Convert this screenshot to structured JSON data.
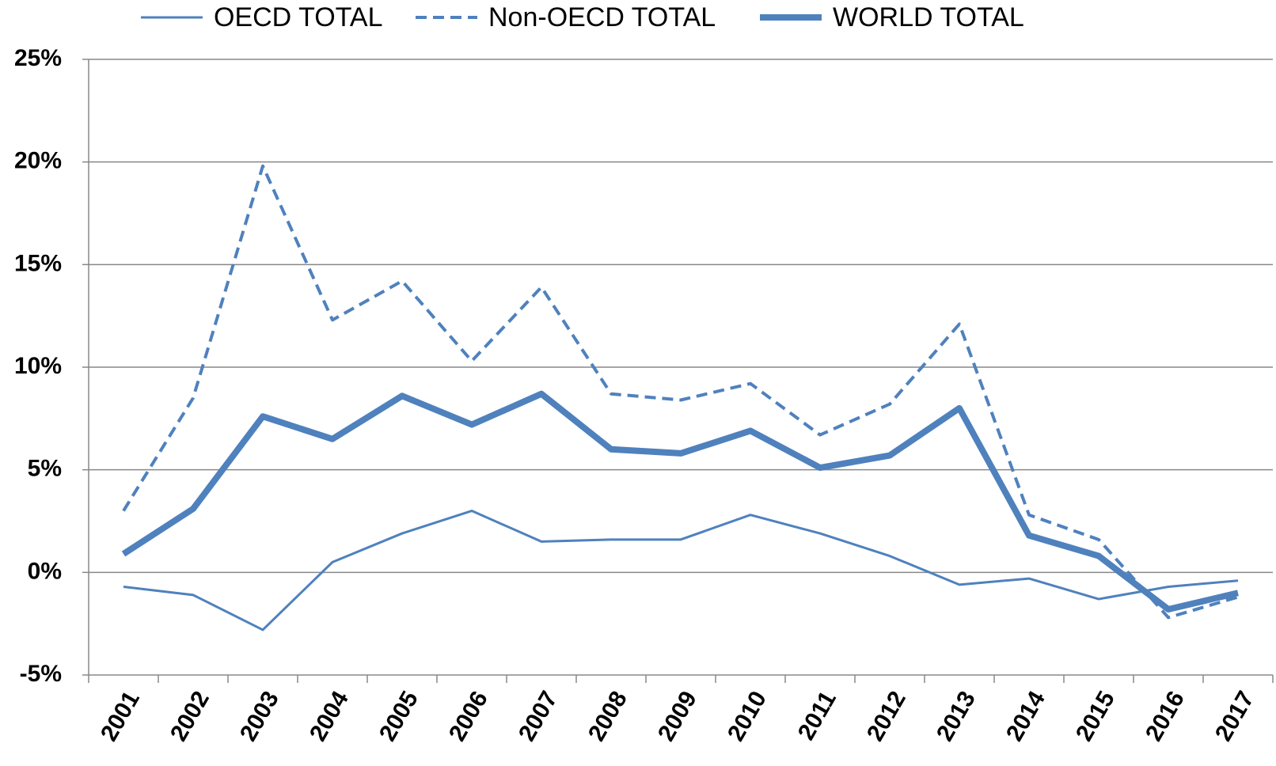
{
  "chart_data": {
    "type": "line",
    "categories": [
      "2001",
      "2002",
      "2003",
      "2004",
      "2005",
      "2006",
      "2007",
      "2008",
      "2009",
      "2010",
      "2011",
      "2012",
      "2013",
      "2014",
      "2015",
      "2016",
      "2017"
    ],
    "series": [
      {
        "name": "OECD TOTAL",
        "color": "#4f81bd",
        "line_width": 3,
        "dash": false,
        "values": [
          -0.7,
          -1.1,
          -2.8,
          0.5,
          1.9,
          3.0,
          1.5,
          1.6,
          1.6,
          2.8,
          1.9,
          0.8,
          -0.6,
          -0.3,
          -1.3,
          -0.7,
          -0.4
        ]
      },
      {
        "name": "Non-OECD TOTAL",
        "color": "#4f81bd",
        "line_width": 4,
        "dash": true,
        "values": [
          3.0,
          8.5,
          19.8,
          12.3,
          14.2,
          10.3,
          13.9,
          8.7,
          8.4,
          9.2,
          6.7,
          8.2,
          12.1,
          2.8,
          1.6,
          -2.2,
          -1.2
        ]
      },
      {
        "name": "WORLD TOTAL",
        "color": "#4f81bd",
        "line_width": 8,
        "dash": false,
        "values": [
          0.9,
          3.1,
          7.6,
          6.5,
          8.6,
          7.2,
          8.7,
          6.0,
          5.8,
          6.9,
          5.1,
          5.7,
          8.0,
          1.8,
          0.8,
          -1.8,
          -1.0
        ]
      }
    ],
    "ylim": [
      -5,
      25
    ],
    "yticks": [
      {
        "value": -5,
        "label": "-5%"
      },
      {
        "value": 0,
        "label": "0%"
      },
      {
        "value": 5,
        "label": "5%"
      },
      {
        "value": 10,
        "label": "10%"
      },
      {
        "value": 15,
        "label": "15%"
      },
      {
        "value": 20,
        "label": "20%"
      },
      {
        "value": 25,
        "label": "25%"
      }
    ],
    "grid": true,
    "legend": "top"
  }
}
